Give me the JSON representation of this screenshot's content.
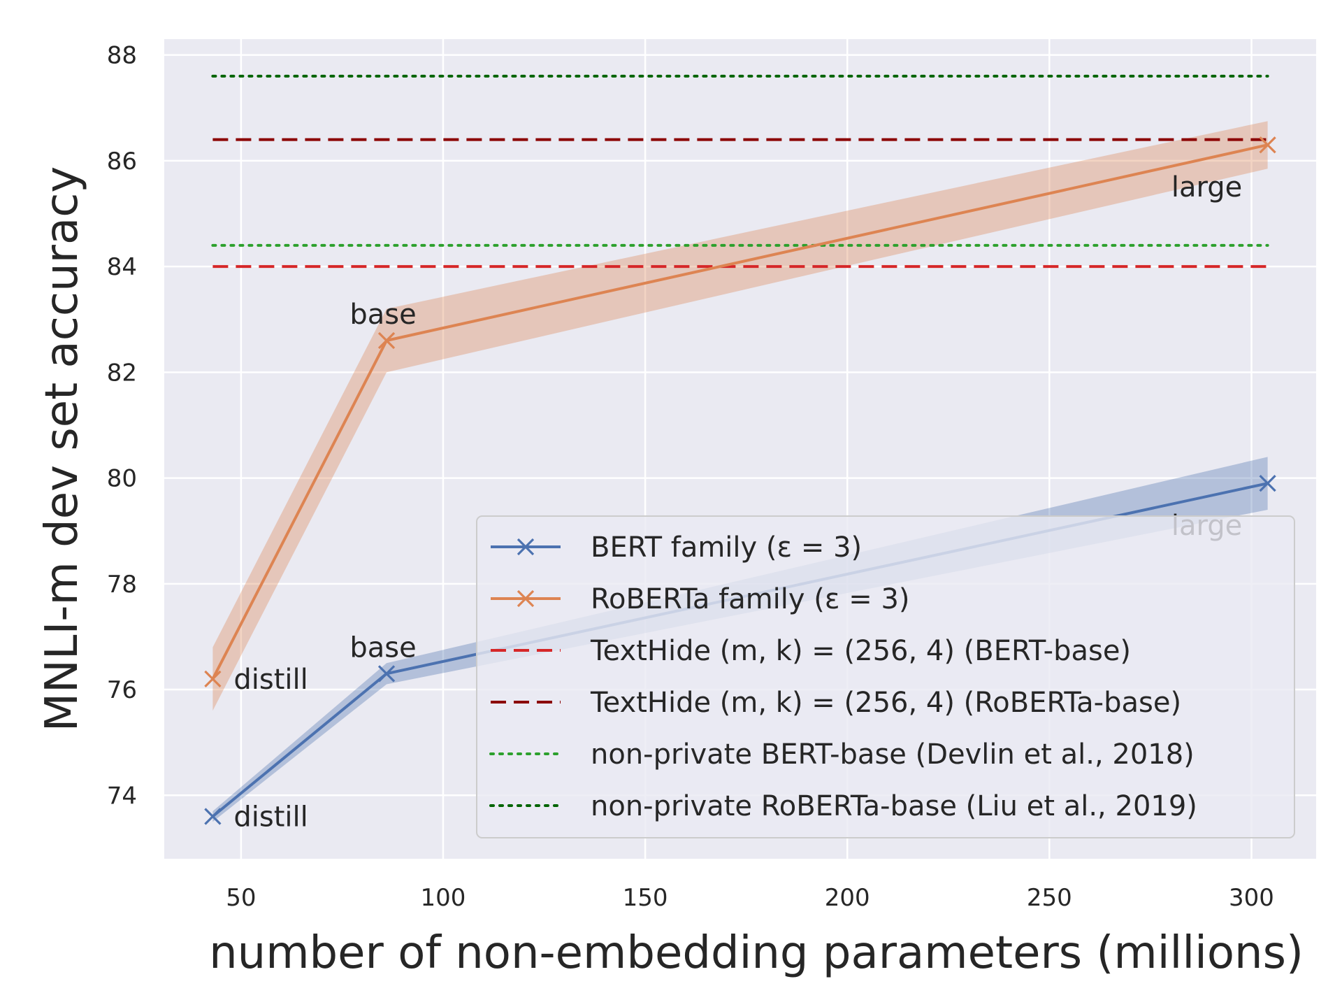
{
  "chart_data": {
    "type": "line",
    "xlabel": "number of non-embedding parameters (millions)",
    "ylabel": "MNLI-m dev set accuracy",
    "xlim": [
      31,
      316
    ],
    "ylim": [
      72.8,
      88.3
    ],
    "xticks": [
      50,
      100,
      150,
      200,
      250,
      300
    ],
    "yticks": [
      74,
      76,
      78,
      80,
      82,
      84,
      86,
      88
    ],
    "grid": true,
    "legend_position": "lower-right",
    "series": [
      {
        "name": "BERT family (ε = 3)",
        "color": "#4c72b0",
        "marker": "x",
        "x": [
          43,
          86,
          304
        ],
        "y": [
          73.6,
          76.3,
          79.9
        ],
        "band": [
          0.1,
          0.2,
          0.5
        ],
        "point_labels": [
          "distill",
          "base",
          "large"
        ]
      },
      {
        "name": "RoBERTa family (ε = 3)",
        "color": "#dd8452",
        "marker": "x",
        "x": [
          43,
          86,
          304
        ],
        "y": [
          76.2,
          82.6,
          86.3
        ],
        "band": [
          0.6,
          0.6,
          0.45
        ],
        "point_labels": [
          "distill",
          "base",
          "large"
        ]
      }
    ],
    "reference_lines": [
      {
        "name": "TextHide (m, k) = (256, 4) (BERT-base)",
        "y": 84.0,
        "style": "dashed",
        "color": "#d62728"
      },
      {
        "name": "TextHide (m, k) = (256, 4) (RoBERTa-base)",
        "y": 86.4,
        "style": "dashed",
        "color": "#8b0000"
      },
      {
        "name": "non-private BERT-base (Devlin et al., 2018)",
        "y": 84.4,
        "style": "dotted",
        "color": "#2ca02c"
      },
      {
        "name": "non-private RoBERTa-base (Liu et al., 2019)",
        "y": 87.6,
        "style": "dotted",
        "color": "#006400"
      }
    ],
    "reference_x_range": [
      43,
      304
    ]
  }
}
